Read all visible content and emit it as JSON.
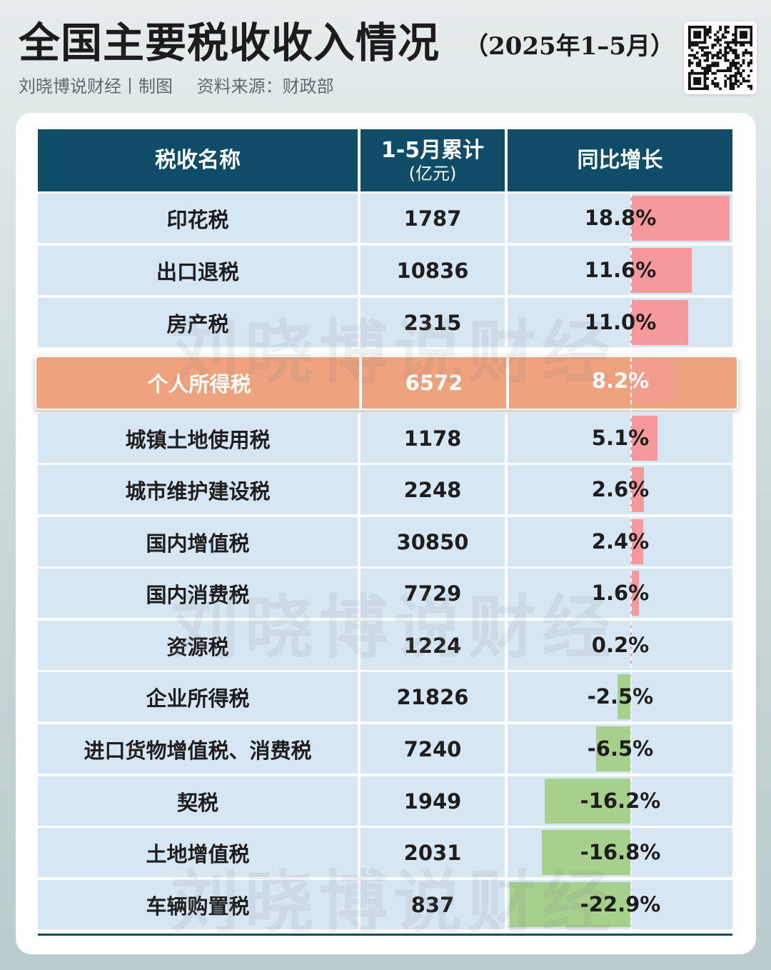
{
  "title": "全国主要税收收入情况",
  "title_period": "（2025年1–5月）",
  "byline": {
    "author": "刘晓博说财经丨制图",
    "source": "资料来源：财政部"
  },
  "watermark": "刘晓博说财经",
  "chart_data": {
    "type": "table",
    "columns": [
      "税收名称",
      "1-5月累计",
      "(亿元)",
      "同比增长"
    ],
    "rows": [
      {
        "name": "印花税",
        "cumulative": "1787",
        "growth_label": "18.8%",
        "growth": 18.8
      },
      {
        "name": "出口退税",
        "cumulative": "10836",
        "growth_label": "11.6%",
        "growth": 11.6
      },
      {
        "name": "房产税",
        "cumulative": "2315",
        "growth_label": "11.0%",
        "growth": 11.0
      },
      {
        "name": "个人所得税",
        "cumulative": "6572",
        "growth_label": "8.2%",
        "growth": 8.2,
        "highlight": true
      },
      {
        "name": "城镇土地使用税",
        "cumulative": "1178",
        "growth_label": "5.1%",
        "growth": 5.1
      },
      {
        "name": "城市维护建设税",
        "cumulative": "2248",
        "growth_label": "2.6%",
        "growth": 2.6
      },
      {
        "name": "国内增值税",
        "cumulative": "30850",
        "growth_label": "2.4%",
        "growth": 2.4
      },
      {
        "name": "国内消费税",
        "cumulative": "7729",
        "growth_label": "1.6%",
        "growth": 1.6
      },
      {
        "name": "资源税",
        "cumulative": "1224",
        "growth_label": "0.2%",
        "growth": 0.2
      },
      {
        "name": "企业所得税",
        "cumulative": "21826",
        "growth_label": "-2.5%",
        "growth": -2.5
      },
      {
        "name": "进口货物增值税、消费税",
        "cumulative": "7240",
        "growth_label": "-6.5%",
        "growth": -6.5
      },
      {
        "name": "契税",
        "cumulative": "1949",
        "growth_label": "-16.2%",
        "growth": -16.2
      },
      {
        "name": "土地增值税",
        "cumulative": "2031",
        "growth_label": "-16.8%",
        "growth": -16.8
      },
      {
        "name": "车辆购置税",
        "cumulative": "837",
        "growth_label": "-22.9%",
        "growth": -22.9
      }
    ],
    "colors": {
      "positive": "#f5999d",
      "negative": "#a6d08c",
      "header": "#0f4c68",
      "highlight": "#efa27e",
      "row": "#d6e6f3"
    }
  }
}
